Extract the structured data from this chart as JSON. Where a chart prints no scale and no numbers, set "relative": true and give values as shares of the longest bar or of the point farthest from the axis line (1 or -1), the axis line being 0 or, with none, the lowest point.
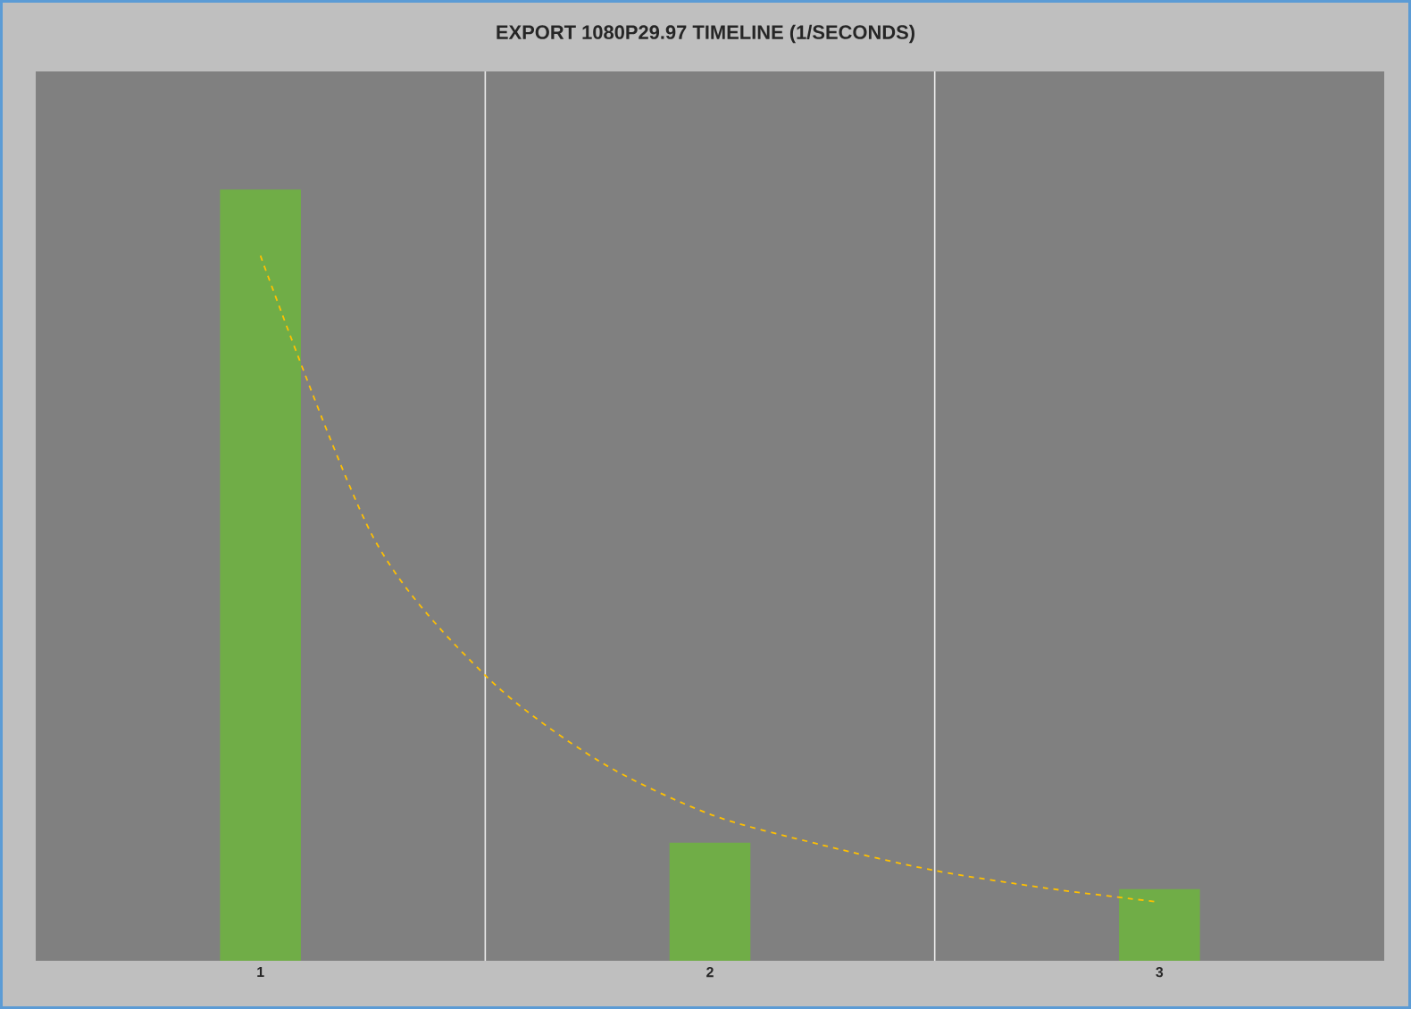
{
  "chart_data": {
    "type": "bar",
    "title": "EXPORT 1080P29.97 TIMELINE (1/SECONDS)",
    "relative": true,
    "x": [
      1,
      2,
      3
    ],
    "xlim": [
      0.5,
      3.5
    ],
    "xticks": [
      {
        "value": 1,
        "label": "1"
      },
      {
        "value": 1.5,
        "label": null
      },
      {
        "value": 2,
        "label": "2"
      },
      {
        "value": 2.5,
        "label": null
      },
      {
        "value": 3,
        "label": "3"
      }
    ],
    "grid": "x",
    "series": [
      {
        "color": "#70ad47",
        "values": [
          1,
          0.153,
          0.093
        ]
      },
      {
        "type": "line",
        "color": "#ffc000",
        "line_style": "dashed",
        "marker": "none",
        "x": [
          1,
          1.25,
          1.5,
          1.75,
          2,
          2.25,
          2.5,
          2.75,
          3
        ],
        "values": [
          0.914,
          0.55,
          0.37,
          0.26,
          0.19,
          0.15,
          0.117,
          0.094,
          0.076
        ]
      }
    ]
  }
}
